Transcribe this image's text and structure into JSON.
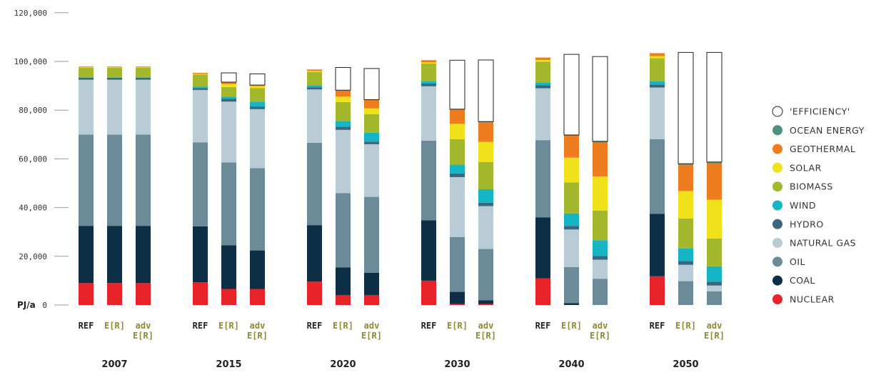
{
  "chart_data": {
    "type": "bar",
    "stacked": true,
    "title": "",
    "ylabel_unit": "PJ/a",
    "ylim": [
      0,
      120000
    ],
    "yticks": [
      {
        "value": 0,
        "label": "0"
      },
      {
        "value": 20000,
        "label": "20,000"
      },
      {
        "value": 40000,
        "label": "40,000"
      },
      {
        "value": 60000,
        "label": "60,000"
      },
      {
        "value": 80000,
        "label": "80,000"
      },
      {
        "value": 100000,
        "label": "100,000"
      },
      {
        "value": 120000,
        "label": "120,000"
      }
    ],
    "grid": false,
    "legend_position": "right",
    "years": [
      "2007",
      "2015",
      "2020",
      "2030",
      "2040",
      "2050"
    ],
    "scenarios": [
      {
        "key": "ref",
        "label": [
          "REF"
        ],
        "color": "#222222"
      },
      {
        "key": "er",
        "label": [
          "E[R]"
        ],
        "color": "#8c8c2c"
      },
      {
        "key": "adv",
        "label": [
          "adv",
          "E[R]"
        ],
        "color": "#8c8c2c"
      }
    ],
    "legend_order": [
      "EFFICIENCY",
      "OCEAN ENERGY",
      "GEOTHERMAL",
      "SOLAR",
      "BIOMASS",
      "WIND",
      "HYDRO",
      "NATURAL GAS",
      "OIL",
      "COAL",
      "NUCLEAR"
    ],
    "series": [
      {
        "name": "NUCLEAR",
        "legend_label": "NUCLEAR",
        "color": "#e8232a",
        "values": [
          9000,
          9000,
          9000,
          9300,
          6600,
          6600,
          9600,
          4000,
          4000,
          10000,
          400,
          400,
          11000,
          0,
          0,
          11800,
          0,
          0
        ]
      },
      {
        "name": "COAL",
        "legend_label": "COAL",
        "color": "#0d2e45",
        "values": [
          23500,
          23500,
          23500,
          23000,
          17900,
          15800,
          23200,
          11400,
          9200,
          24800,
          5000,
          1500,
          25000,
          800,
          0,
          25600,
          0,
          0
        ]
      },
      {
        "name": "OIL",
        "legend_label": "OIL",
        "color": "#6c8b98",
        "values": [
          37500,
          37500,
          37500,
          34500,
          34000,
          33800,
          33800,
          30500,
          31200,
          32700,
          22500,
          21100,
          31700,
          14800,
          10800,
          30700,
          9800,
          5600
        ]
      },
      {
        "name": "NATURAL GAS",
        "legend_label": "NATURAL GAS",
        "color": "#b9ccd6",
        "values": [
          22500,
          22500,
          22500,
          21500,
          25000,
          24200,
          21900,
          26000,
          21600,
          22300,
          24600,
          17600,
          21300,
          15400,
          7800,
          21200,
          6700,
          2400
        ]
      },
      {
        "name": "HYDRO",
        "legend_label": "HYDRO",
        "color": "#3a6680",
        "values": [
          800,
          800,
          800,
          800,
          1100,
          1100,
          900,
          1300,
          1100,
          1100,
          1500,
          1400,
          1200,
          1500,
          1500,
          1200,
          1600,
          1600
        ]
      },
      {
        "name": "WIND",
        "legend_label": "WIND",
        "color": "#16b5c4",
        "values": [
          100,
          100,
          100,
          500,
          900,
          2000,
          800,
          2300,
          3600,
          1000,
          3600,
          5500,
          1200,
          5100,
          6500,
          1300,
          5100,
          6300
        ]
      },
      {
        "name": "BIOMASS",
        "legend_label": "BIOMASS",
        "color": "#a3b82c",
        "values": [
          4000,
          4000,
          4000,
          5000,
          4000,
          5600,
          5500,
          7800,
          7600,
          7200,
          10500,
          11200,
          8500,
          12700,
          12200,
          9500,
          12300,
          11400
        ]
      },
      {
        "name": "SOLAR",
        "legend_label": "SOLAR",
        "color": "#f0e11b",
        "values": [
          200,
          200,
          200,
          300,
          1200,
          800,
          400,
          2300,
          2400,
          600,
          6300,
          8300,
          700,
          10200,
          14000,
          900,
          11300,
          15900
        ]
      },
      {
        "name": "GEOTHERMAL",
        "legend_label": "GEOTHERMAL",
        "color": "#ee7d1f",
        "values": [
          300,
          300,
          300,
          400,
          800,
          400,
          600,
          2500,
          3500,
          800,
          5800,
          8000,
          1000,
          9000,
          13900,
          1200,
          10800,
          15000
        ]
      },
      {
        "name": "OCEAN ENERGY",
        "legend_label": "OCEAN ENERGY",
        "color": "#4f8f80",
        "values": [
          0,
          0,
          0,
          0,
          0,
          0,
          0,
          100,
          100,
          0,
          200,
          300,
          0,
          300,
          500,
          0,
          400,
          500
        ]
      },
      {
        "name": "'EFFICIENCY'",
        "legend_label": "'EFFICIENCY'",
        "color": "#ffffff",
        "outline": "#222222",
        "values": [
          0,
          0,
          0,
          0,
          3800,
          4600,
          0,
          9300,
          12800,
          0,
          20100,
          25300,
          0,
          33100,
          34800,
          0,
          45700,
          45000
        ]
      }
    ]
  }
}
